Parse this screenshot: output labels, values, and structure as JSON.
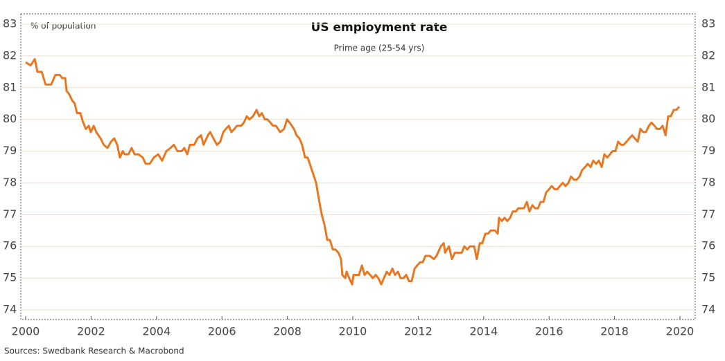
{
  "chart_data": {
    "type": "line",
    "title": "US employment rate",
    "subtitle": "Prime age (25-54 yrs)",
    "y_label": "% of population",
    "source": "Sources: Swedbank Research & Macrobond",
    "xlim": [
      2000,
      2020
    ],
    "xticks": [
      2000,
      2002,
      2004,
      2006,
      2008,
      2010,
      2012,
      2014,
      2016,
      2018,
      2020
    ],
    "ylim": [
      74,
      83
    ],
    "yticks": [
      74,
      75,
      76,
      77,
      78,
      79,
      80,
      81,
      82,
      83
    ],
    "y2lim": [
      74,
      83
    ],
    "y2ticks": [
      74,
      75,
      76,
      77,
      78,
      79,
      80,
      81,
      82,
      83
    ],
    "grid": true,
    "x": [
      2000.0,
      2000.15,
      2000.28,
      2000.36,
      2000.49,
      2000.61,
      2000.78,
      2000.91,
      2001.04,
      2001.12,
      2001.21,
      2001.25,
      2001.33,
      2001.42,
      2001.5,
      2001.57,
      2001.67,
      2001.76,
      2001.84,
      2001.93,
      2001.99,
      2002.08,
      2002.16,
      2002.29,
      2002.39,
      2002.5,
      2002.61,
      2002.71,
      2002.8,
      2002.88,
      2002.97,
      2003.03,
      2003.14,
      2003.24,
      2003.33,
      2003.45,
      2003.58,
      2003.67,
      2003.79,
      2003.92,
      2004.05,
      2004.17,
      2004.3,
      2004.43,
      2004.53,
      2004.64,
      2004.77,
      2004.85,
      2004.94,
      2005.02,
      2005.15,
      2005.25,
      2005.36,
      2005.44,
      2005.57,
      2005.64,
      2005.74,
      2005.85,
      2005.95,
      2006.04,
      2006.12,
      2006.21,
      2006.29,
      2006.38,
      2006.46,
      2006.59,
      2006.67,
      2006.76,
      2006.84,
      2006.95,
      2007.06,
      2007.14,
      2007.22,
      2007.31,
      2007.39,
      2007.48,
      2007.56,
      2007.65,
      2007.78,
      2007.9,
      2007.99,
      2008.07,
      2008.2,
      2008.28,
      2008.37,
      2008.45,
      2008.54,
      2008.62,
      2008.75,
      2008.88,
      2008.96,
      2009.05,
      2009.13,
      2009.22,
      2009.3,
      2009.39,
      2009.47,
      2009.56,
      2009.64,
      2009.68,
      2009.77,
      2009.81,
      2009.89,
      2009.98,
      2010.02,
      2010.11,
      2010.19,
      2010.28,
      2010.36,
      2010.44,
      2010.53,
      2010.61,
      2010.7,
      2010.78,
      2010.87,
      2010.95,
      2011.04,
      2011.12,
      2011.21,
      2011.29,
      2011.38,
      2011.46,
      2011.55,
      2011.63,
      2011.72,
      2011.8,
      2011.89,
      2011.97,
      2012.06,
      2012.14,
      2012.22,
      2012.35,
      2012.48,
      2012.56,
      2012.69,
      2012.78,
      2012.82,
      2012.94,
      2013.03,
      2013.12,
      2013.24,
      2013.33,
      2013.41,
      2013.5,
      2013.58,
      2013.71,
      2013.79,
      2013.88,
      2013.96,
      2014.05,
      2014.13,
      2014.22,
      2014.34,
      2014.43,
      2014.47,
      2014.56,
      2014.64,
      2014.72,
      2014.81,
      2014.89,
      2014.98,
      2015.06,
      2015.15,
      2015.23,
      2015.32,
      2015.4,
      2015.49,
      2015.57,
      2015.66,
      2015.74,
      2015.83,
      2015.91,
      2016.0,
      2016.08,
      2016.17,
      2016.25,
      2016.33,
      2016.42,
      2016.5,
      2016.59,
      2016.67,
      2016.76,
      2016.84,
      2016.93,
      2017.01,
      2017.1,
      2017.18,
      2017.27,
      2017.35,
      2017.44,
      2017.52,
      2017.61,
      2017.69,
      2017.78,
      2017.86,
      2017.94,
      2018.03,
      2018.11,
      2018.2,
      2018.28,
      2018.37,
      2018.45,
      2018.54,
      2018.62,
      2018.71,
      2018.79,
      2018.88,
      2018.96,
      2019.05,
      2019.13,
      2019.22,
      2019.3,
      2019.39,
      2019.47,
      2019.56,
      2019.64,
      2019.72,
      2019.81,
      2019.89,
      2019.98
    ],
    "series": [
      {
        "name": "US employment rate",
        "color": "#e87722",
        "values": [
          81.8,
          81.7,
          81.9,
          81.5,
          81.5,
          81.1,
          81.1,
          81.4,
          81.4,
          81.3,
          81.3,
          80.9,
          80.8,
          80.6,
          80.5,
          80.2,
          80.2,
          79.9,
          79.7,
          79.8,
          79.6,
          79.8,
          79.6,
          79.4,
          79.2,
          79.1,
          79.3,
          79.4,
          79.2,
          78.8,
          79.0,
          78.9,
          78.9,
          79.1,
          78.9,
          78.9,
          78.8,
          78.6,
          78.6,
          78.8,
          78.9,
          78.7,
          79.0,
          79.1,
          79.2,
          79.0,
          79.0,
          79.1,
          78.9,
          79.2,
          79.2,
          79.4,
          79.5,
          79.2,
          79.5,
          79.6,
          79.4,
          79.2,
          79.3,
          79.6,
          79.7,
          79.8,
          79.6,
          79.7,
          79.8,
          79.8,
          79.9,
          80.1,
          80.0,
          80.1,
          80.3,
          80.1,
          80.2,
          80.0,
          80.0,
          79.9,
          79.8,
          79.8,
          79.6,
          79.7,
          80.0,
          79.9,
          79.7,
          79.5,
          79.4,
          79.2,
          78.8,
          78.8,
          78.4,
          78.0,
          77.5,
          77.0,
          76.7,
          76.2,
          76.2,
          75.9,
          75.9,
          75.8,
          75.6,
          75.1,
          75.0,
          75.2,
          75.0,
          74.8,
          75.1,
          75.1,
          75.1,
          75.4,
          75.1,
          75.2,
          75.1,
          75.0,
          75.1,
          75.0,
          74.8,
          75.0,
          75.2,
          75.1,
          75.3,
          75.1,
          75.2,
          75.0,
          75.0,
          75.1,
          74.9,
          74.9,
          75.3,
          75.4,
          75.5,
          75.5,
          75.7,
          75.7,
          75.6,
          75.7,
          76.0,
          76.1,
          75.8,
          76.0,
          75.6,
          75.8,
          75.8,
          75.8,
          76.0,
          75.9,
          76.0,
          76.0,
          75.6,
          76.1,
          76.1,
          76.4,
          76.4,
          76.5,
          76.5,
          76.4,
          76.9,
          76.8,
          76.9,
          76.8,
          76.9,
          77.1,
          77.1,
          77.2,
          77.2,
          77.2,
          77.4,
          77.1,
          77.3,
          77.2,
          77.2,
          77.4,
          77.4,
          77.7,
          77.8,
          77.9,
          77.8,
          77.8,
          77.9,
          78.0,
          77.9,
          78.0,
          78.2,
          78.1,
          78.1,
          78.2,
          78.4,
          78.5,
          78.6,
          78.5,
          78.7,
          78.6,
          78.7,
          78.5,
          78.9,
          78.8,
          78.9,
          79.0,
          79.0,
          79.3,
          79.2,
          79.2,
          79.3,
          79.4,
          79.5,
          79.4,
          79.3,
          79.7,
          79.6,
          79.6,
          79.8,
          79.9,
          79.8,
          79.7,
          79.7,
          79.8,
          79.5,
          80.1,
          80.1,
          80.3,
          80.3,
          80.4
        ]
      }
    ]
  }
}
